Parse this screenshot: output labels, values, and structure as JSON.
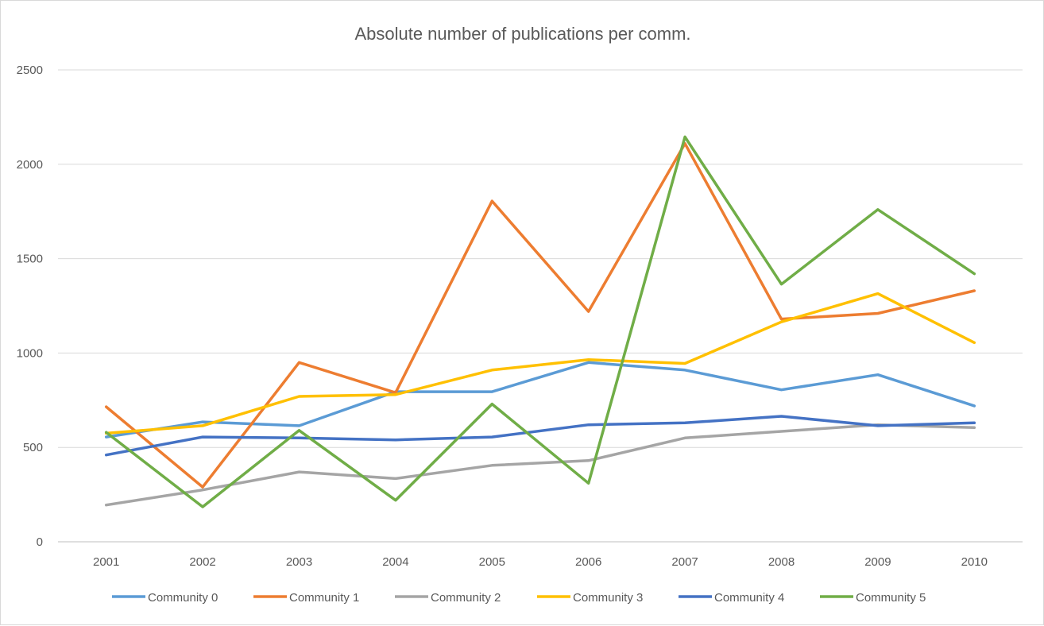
{
  "chart_data": {
    "type": "line",
    "title": "Absolute number of publications per comm.",
    "xlabel": "",
    "ylabel": "",
    "categories": [
      "2001",
      "2002",
      "2003",
      "2004",
      "2005",
      "2006",
      "2007",
      "2008",
      "2009",
      "2010"
    ],
    "ylim": [
      0,
      2500
    ],
    "yticks": [
      0,
      500,
      1000,
      1500,
      2000,
      2500
    ],
    "grid": true,
    "legend": "bottom",
    "series": [
      {
        "name": "Community 0",
        "color": "#5B9BD5",
        "values": [
          555,
          635,
          615,
          795,
          795,
          950,
          910,
          805,
          885,
          720
        ]
      },
      {
        "name": "Community 1",
        "color": "#ED7D31",
        "values": [
          715,
          290,
          950,
          790,
          1805,
          1220,
          2110,
          1180,
          1210,
          1330
        ]
      },
      {
        "name": "Community 2",
        "color": "#A5A5A5",
        "values": [
          195,
          275,
          370,
          335,
          405,
          430,
          550,
          585,
          620,
          605
        ]
      },
      {
        "name": "Community 3",
        "color": "#FFC000",
        "values": [
          575,
          615,
          770,
          780,
          910,
          965,
          945,
          1165,
          1315,
          1055
        ]
      },
      {
        "name": "Community 4",
        "color": "#4472C4",
        "values": [
          460,
          555,
          550,
          540,
          555,
          620,
          630,
          665,
          615,
          630
        ]
      },
      {
        "name": "Community 5",
        "color": "#70AD47",
        "values": [
          580,
          185,
          590,
          220,
          730,
          310,
          2145,
          1365,
          1760,
          1420
        ]
      }
    ]
  }
}
